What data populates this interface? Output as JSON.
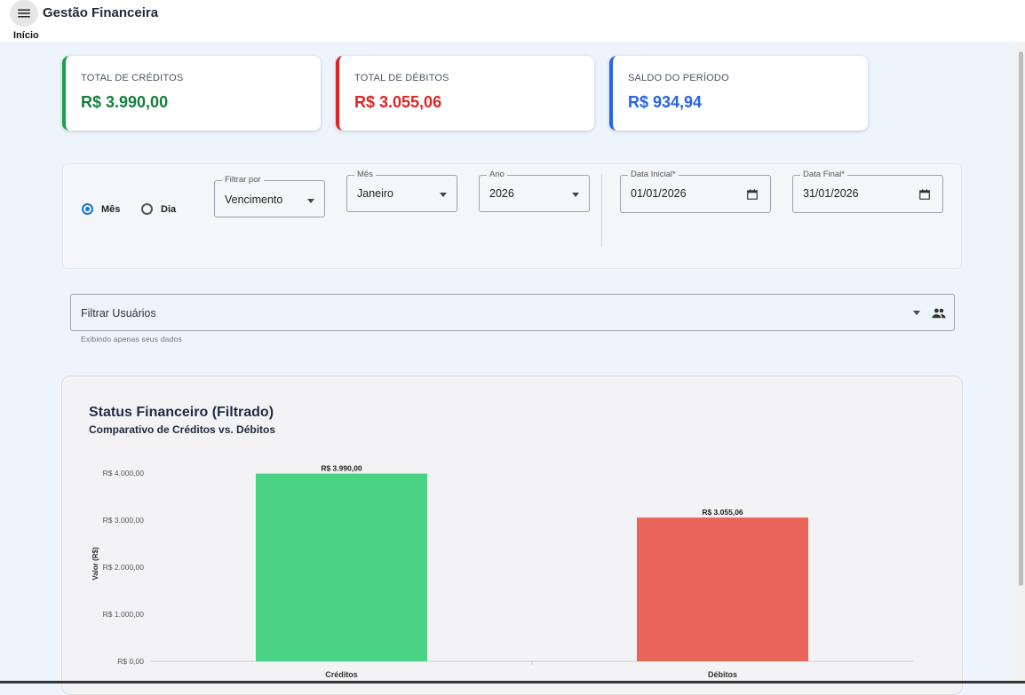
{
  "header": {
    "title": "Gestão Financeira",
    "menu_icon": "menu-icon",
    "breadcrumb": "Início"
  },
  "summary": {
    "credits": {
      "label": "TOTAL DE CRÉDITOS",
      "value": "R$ 3.990,00",
      "color": "#15803d"
    },
    "debits": {
      "label": "TOTAL DE DÉBITOS",
      "value": "R$ 3.055,06",
      "color": "#dc2626"
    },
    "balance": {
      "label": "SALDO DO PERÍODO",
      "value": "R$ 934,94",
      "color": "#2563eb"
    }
  },
  "filters": {
    "mode_options": [
      {
        "label": "Mês",
        "selected": true
      },
      {
        "label": "Dia",
        "selected": false
      }
    ],
    "filter_by": {
      "label": "Filtrar por",
      "value": "Vencimento"
    },
    "month": {
      "label": "Mês",
      "value": "Janeiro"
    },
    "year": {
      "label": "Ano",
      "value": "2026"
    },
    "start_date": {
      "label": "Data Inicial*",
      "value": "01/01/2026"
    },
    "end_date": {
      "label": "Data Final*",
      "value": "31/01/2026"
    }
  },
  "users_filter": {
    "placeholder": "Filtrar Usuários",
    "helper": "Exibindo apenas seus dados",
    "icon": "people-icon"
  },
  "chart": {
    "title": "Status Financeiro (Filtrado)",
    "subtitle": "Comparativo de Créditos vs. Débitos"
  },
  "chart_data": {
    "type": "bar",
    "categories": [
      "Créditos",
      "Débitos"
    ],
    "values": [
      3990.0,
      3055.06
    ],
    "value_labels": [
      "R$ 3.990,00",
      "R$ 3.055,06"
    ],
    "colors": [
      "#4ad385",
      "#e9655a"
    ],
    "ylabel": "Valor (R$)",
    "ylim": [
      0,
      4000
    ],
    "yticks": [
      0,
      1000,
      2000,
      3000,
      4000
    ],
    "ytick_labels": [
      "R$ 0,00",
      "R$ 1.000,00",
      "R$ 2.000,00",
      "R$ 3.000,00",
      "R$ 4.000,00"
    ],
    "grid": false,
    "legend": "none"
  }
}
